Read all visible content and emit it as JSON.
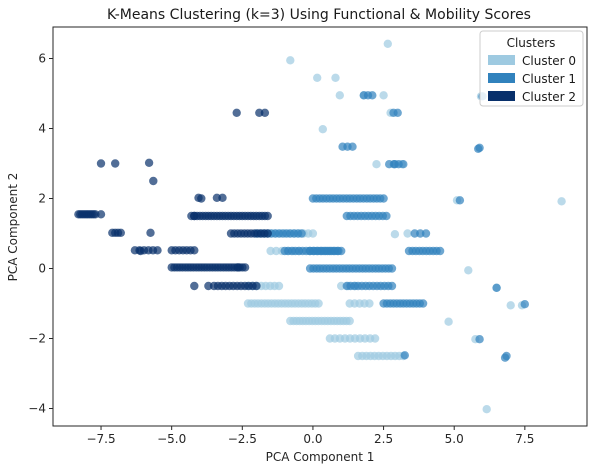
{
  "chart_data": {
    "type": "scatter",
    "title": "K-Means Clustering (k=3) Using Functional & Mobility Scores",
    "xlabel": "PCA Component 1",
    "ylabel": "PCA Component 2",
    "xlim": [
      -9.2,
      9.7
    ],
    "ylim": [
      -4.5,
      6.9
    ],
    "xticks": [
      -7.5,
      -5.0,
      -2.5,
      0.0,
      2.5,
      5.0,
      7.5
    ],
    "xtick_labels": [
      "−7.5",
      "−5.0",
      "−2.5",
      "0.0",
      "2.5",
      "5.0",
      "7.5"
    ],
    "yticks": [
      -4,
      -2,
      0,
      2,
      4,
      6
    ],
    "ytick_labels": [
      "−4",
      "−2",
      "0",
      "2",
      "4",
      "6"
    ],
    "grid": false,
    "legend": {
      "title": "Clusters",
      "placement": "top-right"
    },
    "series": [
      {
        "name": "Cluster 0",
        "color": "#9ecae1",
        "segments": [
          {
            "x0": -1.5,
            "x1": 0.0,
            "y": 1.0,
            "n": 10
          },
          {
            "x0": -1.5,
            "x1": -0.5,
            "y": 0.5,
            "n": 6
          },
          {
            "x0": -2.3,
            "x1": -1.2,
            "y": -0.5,
            "n": 8
          },
          {
            "x0": -2.3,
            "x1": 0.2,
            "y": -1.0,
            "n": 22
          },
          {
            "x0": 1.0,
            "x1": 1.5,
            "y": -0.5,
            "n": 3
          },
          {
            "x0": 1.3,
            "x1": 2.0,
            "y": -1.0,
            "n": 5
          },
          {
            "x0": -0.8,
            "x1": 1.3,
            "y": -1.5,
            "n": 20
          },
          {
            "x0": 0.6,
            "x1": 2.2,
            "y": -2.0,
            "n": 10
          },
          {
            "x0": 1.6,
            "x1": 3.2,
            "y": -2.5,
            "n": 12
          }
        ],
        "points": [
          {
            "x": -0.8,
            "y": 5.95
          },
          {
            "x": 0.15,
            "y": 5.45
          },
          {
            "x": 0.8,
            "y": 5.45
          },
          {
            "x": 0.95,
            "y": 4.95
          },
          {
            "x": 0.35,
            "y": 3.98
          },
          {
            "x": 1.8,
            "y": 4.95
          },
          {
            "x": 2.65,
            "y": 6.42
          },
          {
            "x": 2.5,
            "y": 4.95
          },
          {
            "x": 2.75,
            "y": 4.45
          },
          {
            "x": 2.25,
            "y": 2.98
          },
          {
            "x": 3.15,
            "y": 2.98
          },
          {
            "x": 5.95,
            "y": 4.92
          },
          {
            "x": 8.8,
            "y": 1.92
          },
          {
            "x": 5.1,
            "y": 1.95
          },
          {
            "x": 3.35,
            "y": 1.0
          },
          {
            "x": 2.9,
            "y": 0.98
          },
          {
            "x": 5.5,
            "y": -0.05
          },
          {
            "x": 6.5,
            "y": -0.55
          },
          {
            "x": 7.0,
            "y": -1.05
          },
          {
            "x": 7.4,
            "y": -1.05
          },
          {
            "x": 4.8,
            "y": -1.52
          },
          {
            "x": 5.75,
            "y": -2.02
          },
          {
            "x": 6.15,
            "y": -4.02
          }
        ]
      },
      {
        "name": "Cluster 1",
        "color": "#3182bd",
        "segments": [
          {
            "x0": 0.0,
            "x1": 2.5,
            "y": 2.0,
            "n": 22
          },
          {
            "x0": 1.2,
            "x1": 2.6,
            "y": 1.5,
            "n": 12
          },
          {
            "x0": -2.0,
            "x1": -0.4,
            "y": 1.0,
            "n": 13
          },
          {
            "x0": -0.1,
            "x1": 1.0,
            "y": 0.5,
            "n": 9
          },
          {
            "x0": -1.0,
            "x1": 0.9,
            "y": 0.5,
            "n": 16
          },
          {
            "x0": -0.1,
            "x1": 2.8,
            "y": 0.0,
            "n": 26
          },
          {
            "x0": 1.2,
            "x1": 2.8,
            "y": -0.5,
            "n": 13
          },
          {
            "x0": 2.5,
            "x1": 3.9,
            "y": -1.0,
            "n": 13
          },
          {
            "x0": 3.4,
            "x1": 4.5,
            "y": 0.5,
            "n": 10
          },
          {
            "x0": 2.7,
            "x1": 3.2,
            "y": 2.98,
            "n": 4
          },
          {
            "x0": 1.05,
            "x1": 1.4,
            "y": 3.48,
            "n": 3
          },
          {
            "x0": 3.6,
            "x1": 4.0,
            "y": 1.0,
            "n": 3
          },
          {
            "x0": 1.8,
            "x1": 2.1,
            "y": 4.95,
            "n": 3
          }
        ],
        "points": [
          {
            "x": 2.85,
            "y": 4.45
          },
          {
            "x": 3.0,
            "y": 4.45
          },
          {
            "x": 5.85,
            "y": 3.42
          },
          {
            "x": 5.9,
            "y": 3.45
          },
          {
            "x": 5.2,
            "y": 1.95
          },
          {
            "x": 2.9,
            "y": 2.98
          },
          {
            "x": 3.25,
            "y": -2.48
          },
          {
            "x": 5.9,
            "y": -2.02
          },
          {
            "x": 6.85,
            "y": -2.5
          },
          {
            "x": 6.8,
            "y": -2.55
          },
          {
            "x": 7.5,
            "y": -1.02
          },
          {
            "x": 6.5,
            "y": -0.55
          },
          {
            "x": 6.0,
            "y": 4.92
          }
        ]
      },
      {
        "name": "Cluster 2",
        "color": "#08306b",
        "segments": [
          {
            "x0": -8.3,
            "x1": -7.7,
            "y": 1.55,
            "n": 10
          },
          {
            "x0": -4.3,
            "x1": -1.6,
            "y": 1.5,
            "n": 28
          },
          {
            "x0": -7.1,
            "x1": -6.8,
            "y": 1.02,
            "n": 4
          },
          {
            "x0": -2.9,
            "x1": -1.6,
            "y": 1.0,
            "n": 12
          },
          {
            "x0": -6.3,
            "x1": -5.5,
            "y": 0.52,
            "n": 6
          },
          {
            "x0": -5.0,
            "x1": -4.2,
            "y": 0.52,
            "n": 7
          },
          {
            "x0": -5.0,
            "x1": -2.4,
            "y": 0.03,
            "n": 28
          },
          {
            "x0": -3.5,
            "x1": -2.0,
            "y": -0.5,
            "n": 12
          }
        ],
        "points": [
          {
            "x": -7.5,
            "y": 3.0
          },
          {
            "x": -7.0,
            "y": 3.0
          },
          {
            "x": -5.8,
            "y": 3.02
          },
          {
            "x": -5.65,
            "y": 2.5
          },
          {
            "x": -3.95,
            "y": 2.0
          },
          {
            "x": -4.05,
            "y": 2.02
          },
          {
            "x": -3.4,
            "y": 2.02
          },
          {
            "x": -3.2,
            "y": 2.02
          },
          {
            "x": -2.7,
            "y": 4.45
          },
          {
            "x": -1.9,
            "y": 4.45
          },
          {
            "x": -1.7,
            "y": 4.45
          },
          {
            "x": -7.5,
            "y": 1.55
          },
          {
            "x": -5.75,
            "y": 1.02
          },
          {
            "x": -4.2,
            "y": 1.5
          },
          {
            "x": -4.2,
            "y": -0.5
          },
          {
            "x": -3.7,
            "y": -0.5
          },
          {
            "x": -2.65,
            "y": 0.03
          },
          {
            "x": -6.1,
            "y": 0.5
          }
        ]
      }
    ]
  }
}
